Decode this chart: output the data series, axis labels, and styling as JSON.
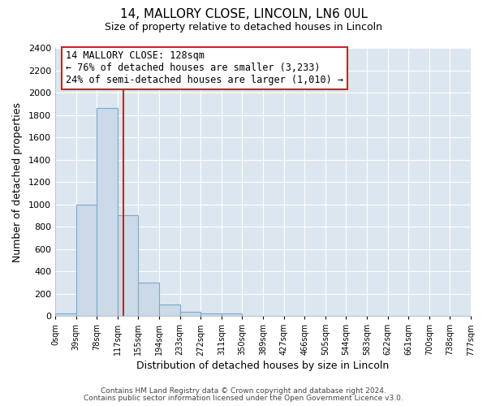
{
  "title": "14, MALLORY CLOSE, LINCOLN, LN6 0UL",
  "subtitle": "Size of property relative to detached houses in Lincoln",
  "xlabel": "Distribution of detached houses by size in Lincoln",
  "ylabel": "Number of detached properties",
  "bin_labels": [
    "0sqm",
    "39sqm",
    "78sqm",
    "117sqm",
    "155sqm",
    "194sqm",
    "233sqm",
    "272sqm",
    "311sqm",
    "350sqm",
    "389sqm",
    "427sqm",
    "466sqm",
    "505sqm",
    "544sqm",
    "583sqm",
    "622sqm",
    "661sqm",
    "700sqm",
    "738sqm",
    "777sqm"
  ],
  "bin_values": [
    20,
    1000,
    1860,
    900,
    300,
    100,
    40,
    25,
    20,
    0,
    0,
    0,
    0,
    0,
    0,
    0,
    0,
    0,
    0,
    0
  ],
  "bar_color": "#ccd9e8",
  "bar_edge_color": "#7aaac8",
  "red_line_x": 128,
  "bin_width": 39,
  "annotation_title": "14 MALLORY CLOSE: 128sqm",
  "annotation_line1": "← 76% of detached houses are smaller (3,233)",
  "annotation_line2": "24% of semi-detached houses are larger (1,010) →",
  "annotation_box_facecolor": "#ffffff",
  "annotation_box_edgecolor": "#cc2222",
  "footer_line1": "Contains HM Land Registry data © Crown copyright and database right 2024.",
  "footer_line2": "Contains public sector information licensed under the Open Government Licence v3.0.",
  "ylim": [
    0,
    2400
  ],
  "yticks": [
    0,
    200,
    400,
    600,
    800,
    1000,
    1200,
    1400,
    1600,
    1800,
    2000,
    2200,
    2400
  ],
  "fig_bg": "#ffffff",
  "axes_bg": "#dce6f0",
  "grid_color": "#ffffff",
  "title_fontsize": 11,
  "subtitle_fontsize": 9,
  "title_fontweight": "normal"
}
